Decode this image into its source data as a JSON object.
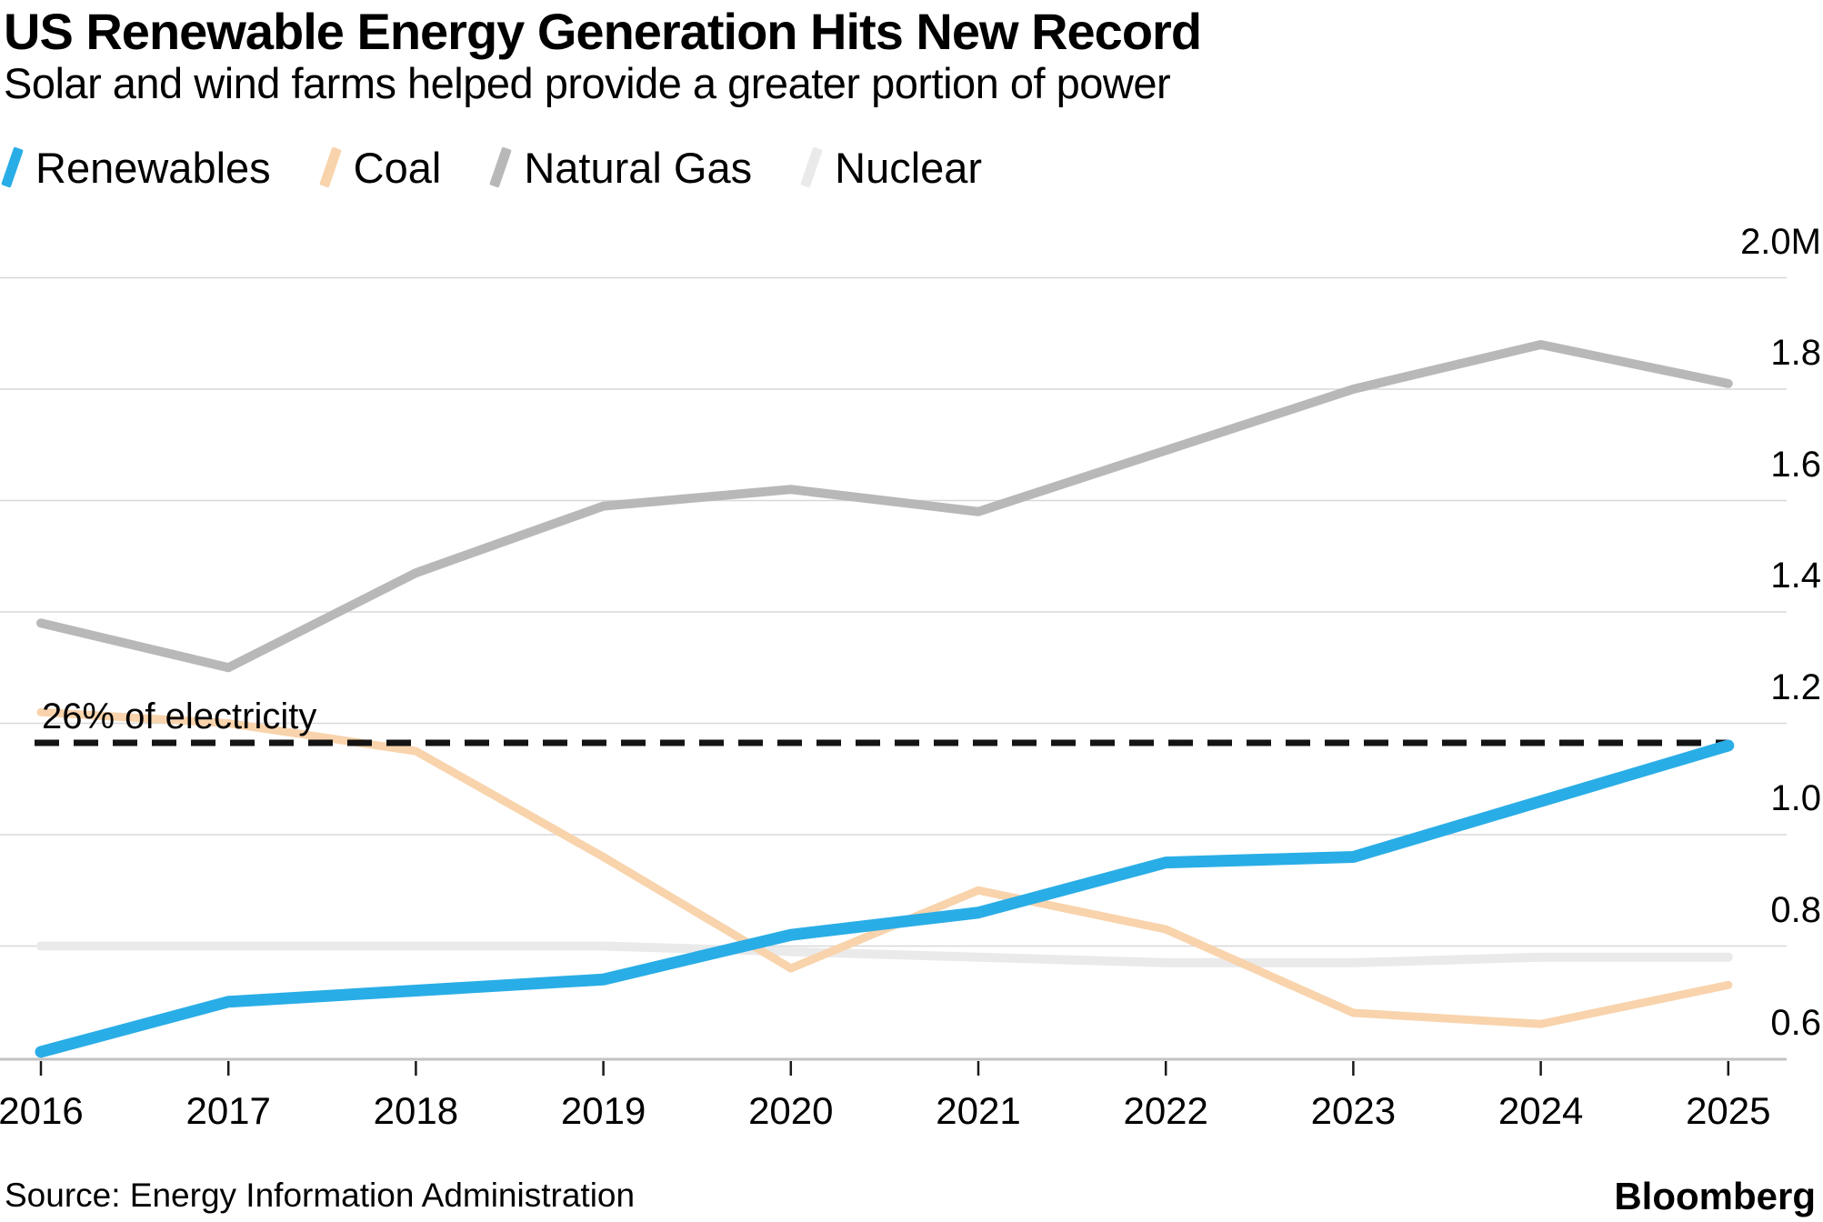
{
  "header": {
    "title": "US Renewable Energy Generation Hits New Record",
    "subtitle": "Solar and wind farms helped provide a greater portion of power"
  },
  "legend": {
    "items": [
      {
        "label": "Renewables",
        "color": "#29ADE6"
      },
      {
        "label": "Coal",
        "color": "#F8D3AC"
      },
      {
        "label": "Natural Gas",
        "color": "#B8B8B8"
      },
      {
        "label": "Nuclear",
        "color": "#EAEAEA"
      }
    ]
  },
  "chart_data": {
    "type": "line",
    "title": "US Renewable Energy Generation Hits New Record",
    "subtitle": "Solar and wind farms helped provide a greater portion of power",
    "xlabel": "",
    "ylabel": "",
    "unit": "M",
    "grid": true,
    "legend_position": "top",
    "categories": [
      "2016",
      "2017",
      "2018",
      "2019",
      "2020",
      "2021",
      "2022",
      "2023",
      "2024",
      "2025"
    ],
    "series": [
      {
        "name": "Renewables",
        "color": "#29ADE6",
        "stroke_width": 13,
        "values": [
          0.61,
          0.7,
          0.72,
          0.74,
          0.82,
          0.86,
          0.95,
          0.96,
          1.06,
          1.16
        ]
      },
      {
        "name": "Coal",
        "color": "#F8D3AC",
        "stroke_width": 9,
        "values": [
          1.22,
          1.2,
          1.15,
          0.96,
          0.76,
          0.9,
          0.83,
          0.68,
          0.66,
          0.73
        ]
      },
      {
        "name": "Natural Gas",
        "color": "#B8B8B8",
        "stroke_width": 10,
        "values": [
          1.38,
          1.3,
          1.47,
          1.59,
          1.62,
          1.58,
          1.69,
          1.8,
          1.88,
          1.81
        ]
      },
      {
        "name": "Nuclear",
        "color": "#EAEAEA",
        "stroke_width": 10,
        "values": [
          0.8,
          0.8,
          0.8,
          0.8,
          0.79,
          0.78,
          0.77,
          0.77,
          0.78,
          0.78
        ]
      }
    ],
    "y_ticks": [
      {
        "value": 0.6,
        "label": "0.6"
      },
      {
        "value": 0.8,
        "label": "0.8"
      },
      {
        "value": 1.0,
        "label": "1.0"
      },
      {
        "value": 1.2,
        "label": "1.2"
      },
      {
        "value": 1.4,
        "label": "1.4"
      },
      {
        "value": 1.6,
        "label": "1.6"
      },
      {
        "value": 1.8,
        "label": "1.8"
      },
      {
        "value": 2.0,
        "label": "2.0M"
      }
    ],
    "ylim": [
      0.55,
      2.05
    ],
    "annotation": {
      "label": "26% of electricity",
      "value": 1.165,
      "line_style": "dashed",
      "color": "#141414"
    },
    "colors": {
      "gridline": "#D8D8D8",
      "axis_line": "#C2C2C2",
      "tick": "#1A1A1A",
      "text": "#000000",
      "background": "#FFFFFF"
    }
  },
  "footer": {
    "source": "Source: Energy Information Administration",
    "brand": "Bloomberg"
  }
}
